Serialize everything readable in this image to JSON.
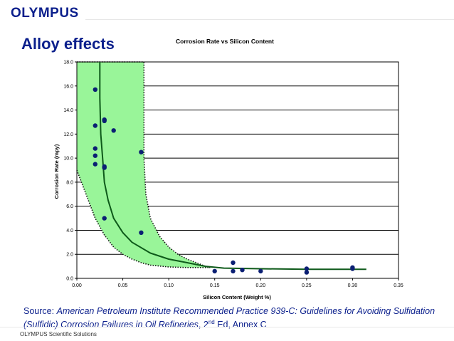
{
  "header": {
    "logo": "OLYMPUS",
    "title": "Alloy effects"
  },
  "chart_data": {
    "type": "scatter",
    "title": "Corrosion Rate vs Silicon Content",
    "xlabel": "Silicon Content (Weight %)",
    "ylabel": "Corrosion Rate (mpy)",
    "xlim": [
      0,
      0.35
    ],
    "ylim": [
      0,
      18
    ],
    "x_ticks": [
      "0.00",
      "0.05",
      "0.10",
      "0.15",
      "0.20",
      "0.25",
      "0.30",
      "0.35"
    ],
    "y_ticks": [
      "0.0",
      "2.0",
      "4.0",
      "6.0",
      "8.0",
      "10.0",
      "12.0",
      "14.0",
      "16.0",
      "18.0"
    ],
    "grid": "horizontal",
    "series": [
      {
        "kind": "points",
        "color": "#0b1f73",
        "x": [
          0.02,
          0.02,
          0.02,
          0.02,
          0.02,
          0.03,
          0.03,
          0.03,
          0.03,
          0.03,
          0.04,
          0.07,
          0.07,
          0.15,
          0.17,
          0.17,
          0.18,
          0.2,
          0.25,
          0.25,
          0.3,
          0.3
        ],
        "y": [
          15.7,
          12.7,
          10.8,
          10.2,
          9.5,
          13.2,
          13.1,
          9.3,
          9.2,
          5.0,
          12.3,
          10.5,
          3.8,
          0.6,
          1.3,
          0.6,
          0.7,
          0.6,
          0.8,
          0.5,
          0.9,
          0.8
        ]
      },
      {
        "kind": "trend-curve",
        "color": "#0e5a1a",
        "x": [
          0.025,
          0.025,
          0.026,
          0.028,
          0.03,
          0.034,
          0.04,
          0.05,
          0.06,
          0.08,
          0.1,
          0.12,
          0.14,
          0.16,
          0.2,
          0.25,
          0.3,
          0.315
        ],
        "y": [
          18.0,
          15.0,
          12.0,
          10.0,
          8.0,
          6.5,
          5.0,
          3.8,
          3.0,
          2.1,
          1.6,
          1.3,
          1.0,
          0.85,
          0.8,
          0.75,
          0.75,
          0.75
        ]
      }
    ],
    "band": {
      "fill": "#99f599",
      "border": "dotted",
      "upper": {
        "x": [
          0.0,
          0.073,
          0.073,
          0.075,
          0.08,
          0.09,
          0.1,
          0.11,
          0.12,
          0.13,
          0.14,
          0.145
        ],
        "y": [
          18.0,
          18.0,
          10.0,
          7.0,
          5.0,
          3.5,
          2.6,
          2.0,
          1.6,
          1.3,
          1.0,
          0.9
        ]
      },
      "lower": {
        "x": [
          0.0,
          0.01,
          0.02,
          0.03,
          0.04,
          0.05,
          0.06,
          0.07,
          0.08,
          0.1,
          0.12,
          0.145
        ],
        "y": [
          9.0,
          7.0,
          5.0,
          3.6,
          2.6,
          2.0,
          1.6,
          1.3,
          1.1,
          0.95,
          0.9,
          0.9
        ]
      }
    }
  },
  "source": {
    "prefix": "Source: ",
    "title_italic": "American Petroleum Institute Recommended Practice 939-C: Guidelines for Avoiding Sulfidation (Sulfidic) Corrosion Failures in Oil Refineries",
    "edition_num": ", 2",
    "edition_sup": "nd",
    "edition_rest": " Ed, Annex C"
  },
  "footer": {
    "text": "OLYMPUS Scientific Solutions"
  }
}
